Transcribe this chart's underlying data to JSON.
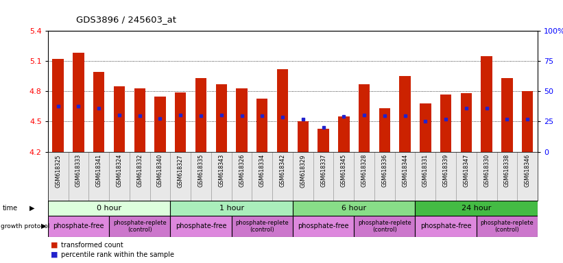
{
  "title": "GDS3896 / 245603_at",
  "samples": [
    "GSM618325",
    "GSM618333",
    "GSM618341",
    "GSM618324",
    "GSM618332",
    "GSM618340",
    "GSM618327",
    "GSM618335",
    "GSM618343",
    "GSM618326",
    "GSM618334",
    "GSM618342",
    "GSM618329",
    "GSM618337",
    "GSM618345",
    "GSM618328",
    "GSM618336",
    "GSM618344",
    "GSM618331",
    "GSM618339",
    "GSM618347",
    "GSM618330",
    "GSM618338",
    "GSM618346"
  ],
  "bar_heights": [
    5.12,
    5.18,
    4.99,
    4.85,
    4.83,
    4.75,
    4.79,
    4.93,
    4.87,
    4.83,
    4.73,
    5.02,
    4.5,
    4.43,
    4.55,
    4.87,
    4.63,
    4.95,
    4.68,
    4.77,
    4.78,
    5.15,
    4.93,
    4.8
  ],
  "percentile_ranks": [
    4.655,
    4.655,
    4.635,
    4.565,
    4.555,
    4.53,
    4.565,
    4.555,
    4.565,
    4.555,
    4.555,
    4.545,
    4.52,
    4.44,
    4.55,
    4.565,
    4.555,
    4.555,
    4.5,
    4.52,
    4.635,
    4.635,
    4.52,
    4.52
  ],
  "bar_color": "#cc2200",
  "percentile_color": "#2222cc",
  "ymin": 4.2,
  "ymax": 5.4,
  "yticks_left": [
    4.2,
    4.5,
    4.8,
    5.1,
    5.4
  ],
  "yticks_right_pct": [
    0,
    25,
    50,
    75,
    100
  ],
  "time_groups": [
    {
      "label": "0 hour",
      "start": 0,
      "end": 6,
      "color": "#ddffdd"
    },
    {
      "label": "1 hour",
      "start": 6,
      "end": 12,
      "color": "#aaeebb"
    },
    {
      "label": "6 hour",
      "start": 12,
      "end": 18,
      "color": "#88dd88"
    },
    {
      "label": "24 hour",
      "start": 18,
      "end": 24,
      "color": "#44bb44"
    }
  ],
  "protocol_groups": [
    {
      "label": "phosphate-free",
      "start": 0,
      "end": 3,
      "color": "#dd88dd",
      "fontsize": 7
    },
    {
      "label": "phosphate-replete\n(control)",
      "start": 3,
      "end": 6,
      "color": "#cc77cc",
      "fontsize": 6
    },
    {
      "label": "phosphate-free",
      "start": 6,
      "end": 9,
      "color": "#dd88dd",
      "fontsize": 7
    },
    {
      "label": "phosphate-replete\n(control)",
      "start": 9,
      "end": 12,
      "color": "#cc77cc",
      "fontsize": 6
    },
    {
      "label": "phosphate-free",
      "start": 12,
      "end": 15,
      "color": "#dd88dd",
      "fontsize": 7
    },
    {
      "label": "phosphate-replete\n(control)",
      "start": 15,
      "end": 18,
      "color": "#cc77cc",
      "fontsize": 6
    },
    {
      "label": "phosphate-free",
      "start": 18,
      "end": 21,
      "color": "#dd88dd",
      "fontsize": 7
    },
    {
      "label": "phosphate-replete\n(control)",
      "start": 21,
      "end": 24,
      "color": "#cc77cc",
      "fontsize": 6
    }
  ],
  "tick_bg": "#e8e8e8",
  "plot_bg": "#ffffff"
}
